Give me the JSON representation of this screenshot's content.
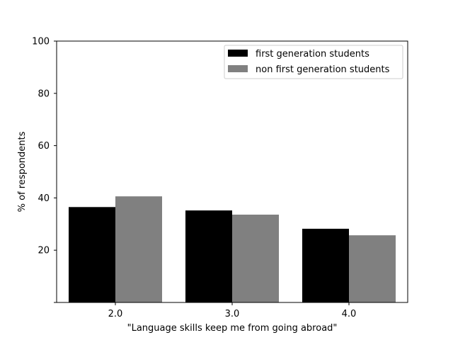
{
  "chart_data": {
    "type": "bar",
    "categories": [
      "2.0",
      "3.0",
      "4.0"
    ],
    "series": [
      {
        "name": "first generation students",
        "color": "#000000",
        "values": [
          36.5,
          35.2,
          28.2
        ]
      },
      {
        "name": "non first generation students",
        "color": "#808080",
        "values": [
          40.6,
          33.6,
          25.7
        ]
      }
    ],
    "xlabel": "\"Language skills keep me from going abroad\"",
    "ylabel": "% of respondents",
    "ylim": [
      0,
      100
    ],
    "yticks": [
      "20",
      "40",
      "60",
      "80",
      "100"
    ],
    "legend_position": "top-right",
    "grid": false
  }
}
